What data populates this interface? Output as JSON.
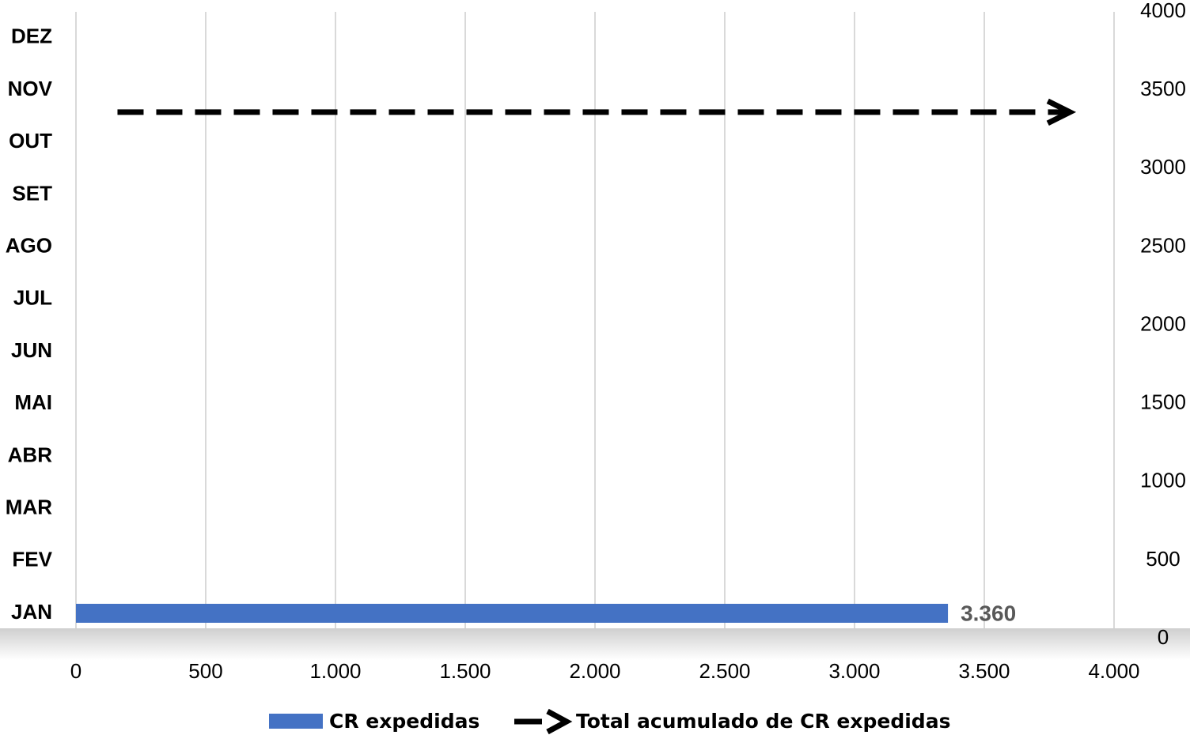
{
  "chart_data": {
    "type": "bar",
    "orientation": "horizontal",
    "categories": [
      "JAN",
      "FEV",
      "MAR",
      "ABR",
      "MAI",
      "JUN",
      "JUL",
      "AGO",
      "SET",
      "OUT",
      "NOV",
      "DEZ"
    ],
    "series": [
      {
        "name": "CR expedidas",
        "color": "#4472c4",
        "values": [
          3360,
          null,
          null,
          null,
          null,
          null,
          null,
          null,
          null,
          null,
          null,
          null
        ],
        "value_labels": [
          "3.360",
          null,
          null,
          null,
          null,
          null,
          null,
          null,
          null,
          null,
          null,
          null
        ]
      },
      {
        "name": "Total acumulado de CR expedidas",
        "type": "line",
        "color": "#000000",
        "dashed": true,
        "axis": "y2",
        "x": [
          160,
          3830
        ],
        "values": [
          3360,
          3360
        ]
      }
    ],
    "xlim": [
      0,
      4000
    ],
    "xticks": [
      0,
      500,
      {
        "value": 1000,
        "label": "1.000"
      },
      {
        "value": 1500,
        "label": "1.500"
      },
      {
        "value": 2000,
        "label": "2.000"
      },
      {
        "value": 2500,
        "label": "2.500"
      },
      {
        "value": 3000,
        "label": "3.000"
      },
      {
        "value": 3500,
        "label": "3.500"
      },
      {
        "value": 4000,
        "label": "4.000"
      }
    ],
    "y2lim": [
      0,
      4000
    ],
    "y2ticks": [
      0,
      500,
      1000,
      1500,
      2000,
      2500,
      3000,
      3500,
      4000
    ],
    "grid": true
  }
}
